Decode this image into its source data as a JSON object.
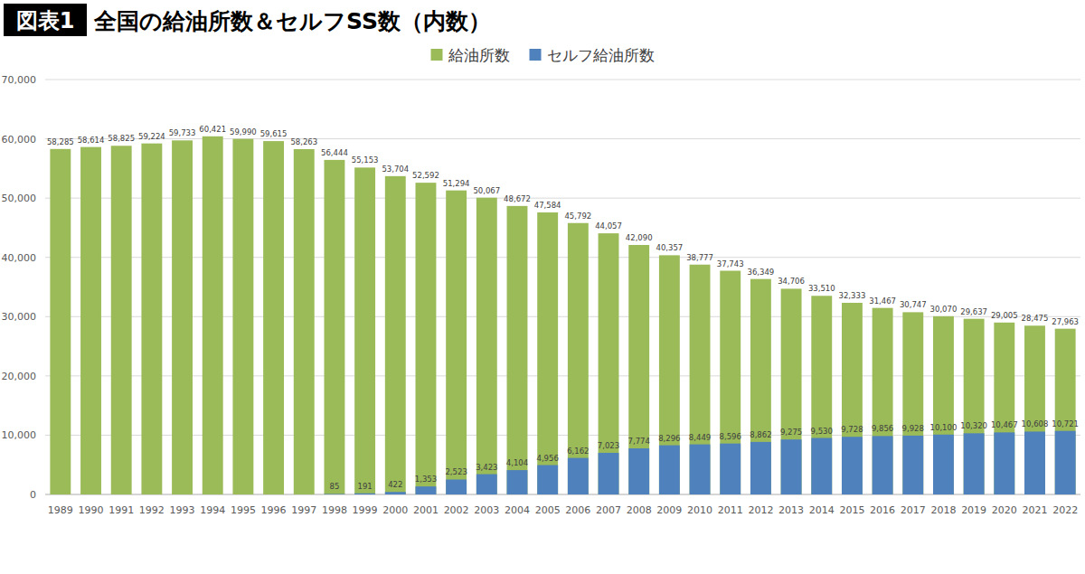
{
  "chart_data": {
    "type": "bar",
    "title": "全国の給油所数＆セルフSS数（内数）",
    "annotations": [
      "図表1"
    ],
    "categories": [
      "1989",
      "1990",
      "1991",
      "1992",
      "1993",
      "1994",
      "1995",
      "1996",
      "1997",
      "1998",
      "1999",
      "2000",
      "2001",
      "2002",
      "2003",
      "2004",
      "2005",
      "2006",
      "2007",
      "2008",
      "2009",
      "2010",
      "2011",
      "2012",
      "2013",
      "2014",
      "2015",
      "2016",
      "2017",
      "2018",
      "2019",
      "2020",
      "2021",
      "2022"
    ],
    "series": [
      {
        "name": "給油所数",
        "color": "#9bbb59",
        "values": [
          58285,
          58614,
          58825,
          59224,
          59733,
          60421,
          59990,
          59615,
          58263,
          56444,
          55153,
          53704,
          52592,
          51294,
          50067,
          48672,
          47584,
          45792,
          44057,
          42090,
          40357,
          38777,
          37743,
          36349,
          34706,
          33510,
          32333,
          31467,
          30747,
          30070,
          29637,
          29005,
          28475,
          27963
        ],
        "value_labels": [
          "58,285",
          "58,614",
          "58,825",
          "59,224",
          "59,733",
          "60,421",
          "59,990",
          "59,615",
          "58,263",
          "56,444",
          "55,153",
          "53,704",
          "52,592",
          "51,294",
          "50,067",
          "48,672",
          "47,584",
          "45,792",
          "44,057",
          "42,090",
          "40,357",
          "38,777",
          "37,743",
          "36,349",
          "34,706",
          "33,510",
          "32,333",
          "31,467",
          "30,747",
          "30,070",
          "29,637",
          "29,005",
          "28,475",
          "27,963"
        ]
      },
      {
        "name": "セルフ給油所数",
        "color": "#4f81bd",
        "values": [
          null,
          null,
          null,
          null,
          null,
          null,
          null,
          null,
          null,
          85,
          191,
          422,
          1353,
          2523,
          3423,
          4104,
          4956,
          6162,
          7023,
          7774,
          8296,
          8449,
          8596,
          8862,
          9275,
          9530,
          9728,
          9856,
          9928,
          10100,
          10320,
          10467,
          10608,
          10721
        ],
        "value_labels": [
          null,
          null,
          null,
          null,
          null,
          null,
          null,
          null,
          null,
          "85",
          "191",
          "422",
          "1,353",
          "2,523",
          "3,423",
          "4,104",
          "4,956",
          "6,162",
          "7,023",
          "7,774",
          "8,296",
          "8,449",
          "8,596",
          "8,862",
          "9,275",
          "9,530",
          "9,728",
          "9,856",
          "9,928",
          "10,100",
          "10,320",
          "10,467",
          "10,608",
          "10,721"
        ]
      }
    ],
    "ylim": [
      0,
      70000
    ],
    "yticks": [
      0,
      {
        "value": 10000,
        "label": "10,000"
      },
      {
        "value": 20000,
        "label": "20,000"
      },
      {
        "value": 30000,
        "label": "30,000"
      },
      {
        "value": 40000,
        "label": "40,000"
      },
      {
        "value": 50000,
        "label": "50,000"
      },
      {
        "value": 60000,
        "label": "60,000"
      },
      {
        "value": 70000,
        "label": "70,000"
      }
    ],
    "grid": true,
    "legend": "top",
    "stacked": false,
    "data_labels": true
  }
}
